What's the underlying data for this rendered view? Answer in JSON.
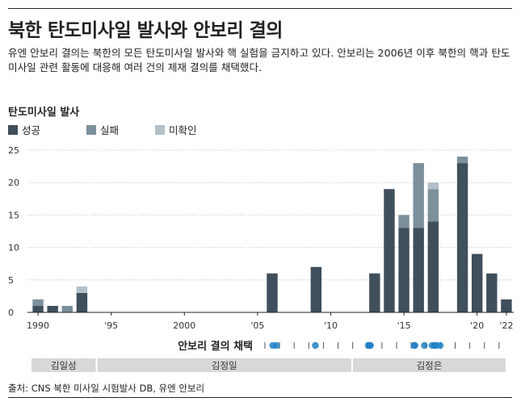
{
  "title": "북한 탄도미사일 발사와 안보리 결의",
  "subtitle": "유엔 안보리 결의는 북한의 모든 탄도미사일 발사와 핵 실험을 금지하고 있다. 안보리는 2006년 이후 북한의 핵과 탄도미사일 관련 활동에 대응해 여러 건의 제재 결의를 채택했다.",
  "chart_heading": "탄도미사일 발사",
  "legend": [
    {
      "label": "성공",
      "color": "#3f4f5c"
    },
    {
      "label": "실패",
      "color": "#7c909c"
    },
    {
      "label": "미확인",
      "color": "#b3c0c8"
    }
  ],
  "chart_data": {
    "type": "bar",
    "stacked": true,
    "x_range": [
      1990,
      2022
    ],
    "ylim": [
      0,
      25
    ],
    "y_ticks": [
      0,
      5,
      10,
      15,
      20,
      25
    ],
    "x_ticks": [
      {
        "year": 1990,
        "label": "1990"
      },
      {
        "year": 1995,
        "label": "'95"
      },
      {
        "year": 2000,
        "label": "2000"
      },
      {
        "year": 2005,
        "label": "'05"
      },
      {
        "year": 2010,
        "label": "'10"
      },
      {
        "year": 2015,
        "label": "'15"
      },
      {
        "year": 2020,
        "label": "'20"
      },
      {
        "year": 2022,
        "label": "'22"
      }
    ],
    "years": [
      1990,
      1991,
      1992,
      1993,
      2006,
      2009,
      2013,
      2014,
      2015,
      2016,
      2017,
      2019,
      2020,
      2021,
      2022
    ],
    "series": [
      {
        "name": "성공",
        "color": "#3f4f5c",
        "values": [
          1,
          1,
          0,
          3,
          6,
          7,
          6,
          19,
          13,
          13,
          14,
          23,
          9,
          6,
          2
        ]
      },
      {
        "name": "실패",
        "color": "#7c909c",
        "values": [
          1,
          0,
          1,
          0,
          0,
          0,
          0,
          0,
          2,
          10,
          5,
          1,
          0,
          0,
          0
        ]
      },
      {
        "name": "미확인",
        "color": "#b3c0c8",
        "values": [
          0,
          0,
          0,
          1,
          0,
          0,
          0,
          0,
          0,
          0,
          1,
          0,
          0,
          0,
          0
        ]
      }
    ],
    "resolutions": {
      "label": "안보리 결의 채택",
      "color": "#1f7fc4",
      "dates": [
        2006.54,
        2006.79,
        2009.45,
        2013.06,
        2013.18,
        2013.21,
        2016.2,
        2016.25,
        2016.9,
        2017.43,
        2017.6,
        2017.7,
        2017.98
      ]
    },
    "leaders": [
      {
        "name": "김일성",
        "start": 1990,
        "end": 1994.5
      },
      {
        "name": "김정일",
        "start": 1994.5,
        "end": 2011.96
      },
      {
        "name": "김정은",
        "start": 2011.96,
        "end": 2022.5
      }
    ]
  },
  "source": "출처: CNS 북한 미사일 시험발사 DB, 유엔 안보리"
}
